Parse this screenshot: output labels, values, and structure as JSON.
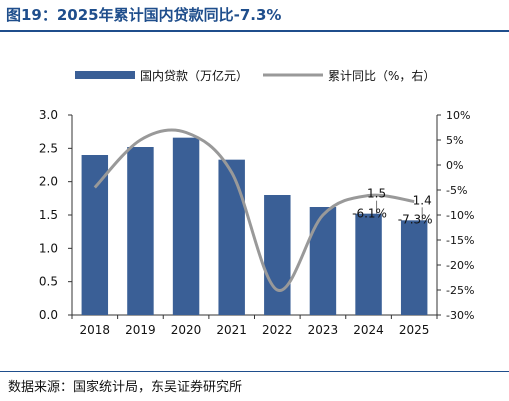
{
  "figure": {
    "title": "图19：2025年累计国内贷款同比-7.3%",
    "source": "数据来源：国家统计局，东吴证券研究所"
  },
  "chart_data": {
    "type": "bar+line",
    "categories": [
      "2018",
      "2019",
      "2020",
      "2021",
      "2022",
      "2023",
      "2024",
      "2025"
    ],
    "series": [
      {
        "name": "国内贷款（万亿元）",
        "type": "bar",
        "axis": "left",
        "color": "#3a5f96",
        "values": [
          2.4,
          2.52,
          2.66,
          2.33,
          1.8,
          1.62,
          1.52,
          1.42
        ]
      },
      {
        "name": "累计同比（%，右）",
        "type": "line",
        "axis": "right",
        "color": "#999999",
        "values": [
          -4.5,
          5.0,
          6.5,
          -1.5,
          -25.0,
          -10.0,
          -6.1,
          -7.3
        ]
      }
    ],
    "annotations": [
      {
        "category": "2024",
        "series": "bar",
        "label": "1.5"
      },
      {
        "category": "2025",
        "series": "bar",
        "label": "1.4"
      },
      {
        "category": "2024",
        "series": "line",
        "label": "-6.1%"
      },
      {
        "category": "2025",
        "series": "line",
        "label": "-7.3%"
      }
    ],
    "left_axis": {
      "min": 0,
      "max": 3.0,
      "step": 0.5,
      "tick_labels": [
        "0.0",
        "0.5",
        "1.0",
        "1.5",
        "2.0",
        "2.5",
        "3.0"
      ]
    },
    "right_axis": {
      "min": -30,
      "max": 10,
      "step": 5,
      "tick_labels": [
        "-30%",
        "-25%",
        "-20%",
        "-15%",
        "-10%",
        "-5%",
        "0%",
        "5%",
        "10%"
      ]
    },
    "grid": false,
    "legend_position": "top"
  }
}
